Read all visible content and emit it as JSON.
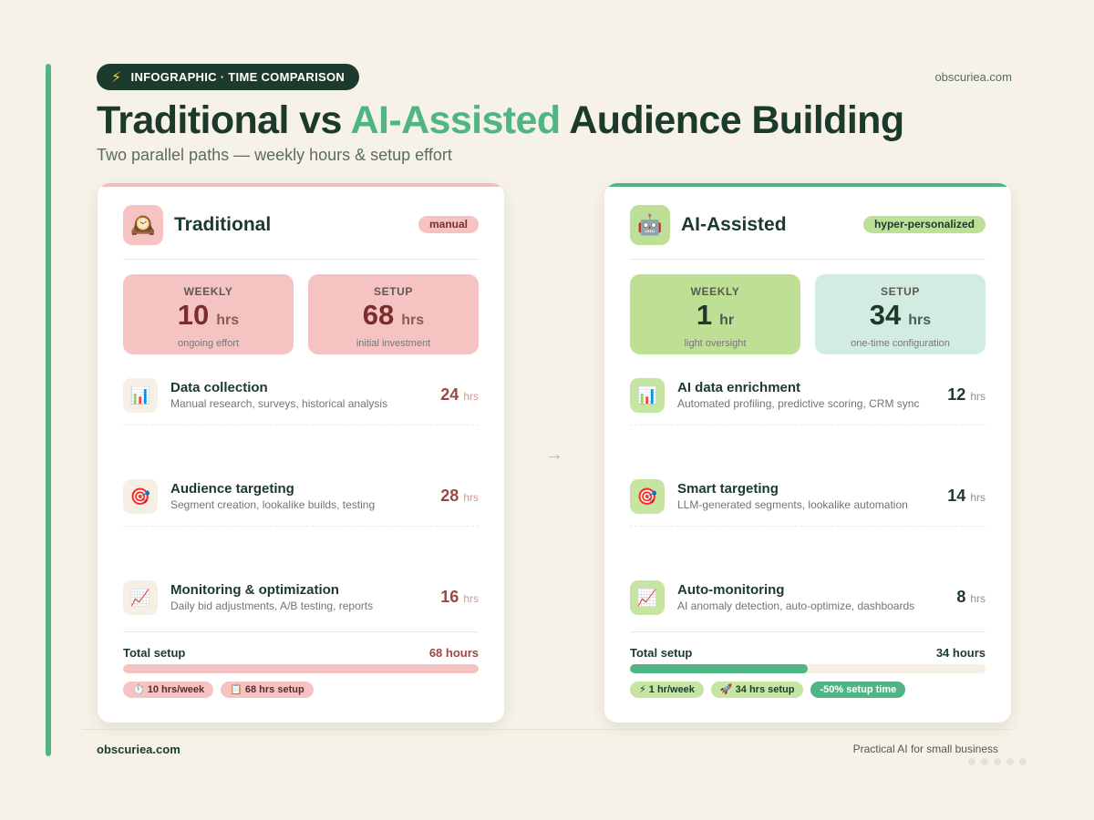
{
  "header": {
    "badge_icon": "⚡",
    "badge_label": "INFOGRAPHIC · TIME COMPARISON",
    "domain": "obscuriea.com",
    "title_part1": "Traditional vs ",
    "title_highlight": "AI-Assisted",
    "title_part2": " Audience Building",
    "subtitle": "Two parallel paths — weekly hours & setup effort"
  },
  "colors": {
    "accent": "#4fb585",
    "dark": "#1d3b2c",
    "traditional": "#f6c3c3",
    "ai": "#bddf98"
  },
  "traditional": {
    "icon": "🕰️",
    "title": "Traditional",
    "tag": "manual",
    "weekly": {
      "label": "WEEKLY",
      "value": "10",
      "unit": "hrs",
      "caption": "ongoing effort"
    },
    "setup": {
      "label": "SETUP",
      "value": "68",
      "unit": "hrs",
      "caption": "initial investment"
    },
    "items": [
      {
        "icon": "📊",
        "name": "Data collection",
        "desc": "Manual research, surveys, historical analysis",
        "hours": "24",
        "unit": "hrs"
      },
      {
        "icon": "🎯",
        "name": "Audience targeting",
        "desc": "Segment creation, lookalike builds, testing",
        "hours": "28",
        "unit": "hrs"
      },
      {
        "icon": "📈",
        "name": "Monitoring & optimization",
        "desc": "Daily bid adjustments, A/B testing, reports",
        "hours": "16",
        "unit": "hrs"
      }
    ],
    "total": {
      "label": "Total setup",
      "value": "68 hours",
      "fraction": 1.0
    },
    "pills": [
      "⏱️ 10 hrs/week",
      "📋 68 hrs setup"
    ]
  },
  "ai": {
    "icon": "🤖",
    "title": "AI-Assisted",
    "tag": "hyper-personalized",
    "weekly": {
      "label": "WEEKLY",
      "value": "1",
      "unit": "hr",
      "caption": "light oversight"
    },
    "setup": {
      "label": "SETUP",
      "value": "34",
      "unit": "hrs",
      "caption": "one-time configuration"
    },
    "items": [
      {
        "icon": "📊",
        "name": "AI data enrichment",
        "desc": "Automated profiling, predictive scoring, CRM sync",
        "hours": "12",
        "unit": "hrs"
      },
      {
        "icon": "🎯",
        "name": "Smart targeting",
        "desc": "LLM-generated segments, lookalike automation",
        "hours": "14",
        "unit": "hrs"
      },
      {
        "icon": "📈",
        "name": "Auto-monitoring",
        "desc": "AI anomaly detection, auto-optimize, dashboards",
        "hours": "8",
        "unit": "hrs"
      }
    ],
    "total": {
      "label": "Total setup",
      "value": "34 hours",
      "fraction": 0.5
    },
    "pills": [
      "⚡ 1 hr/week",
      "🚀 34 hrs setup",
      "-50% setup time"
    ]
  },
  "arrow": "→",
  "footer": {
    "domain": "obscuriea.com",
    "tagline": "Practical AI for small business"
  }
}
